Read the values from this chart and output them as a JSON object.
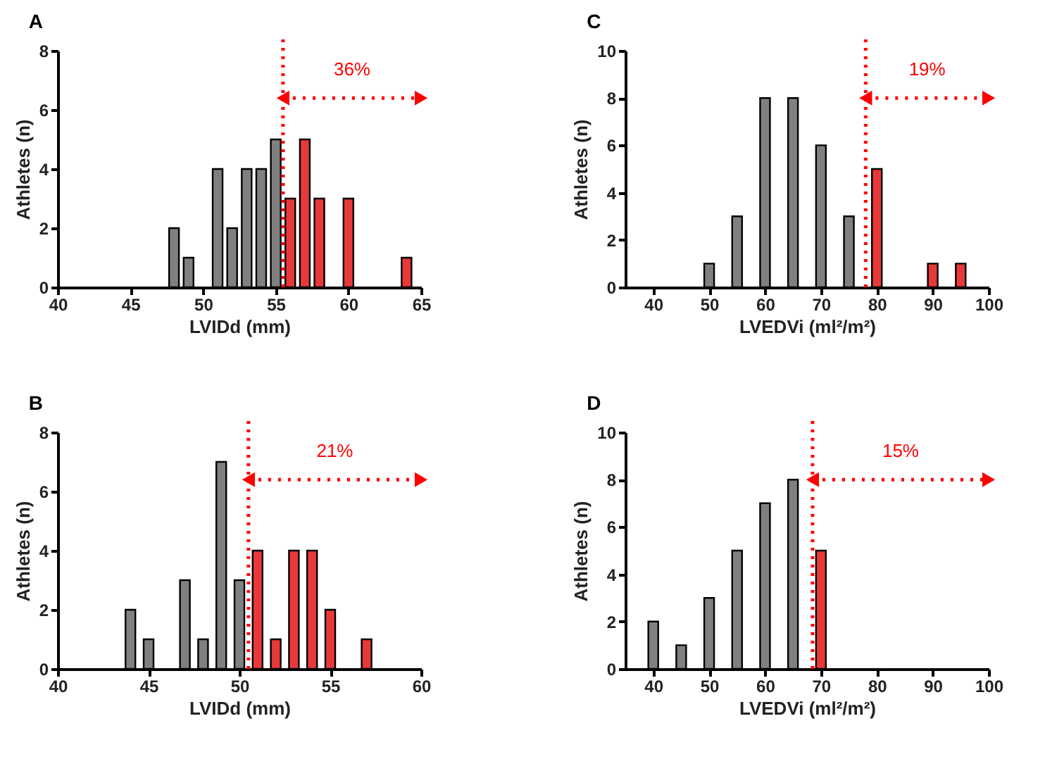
{
  "chart_data": [
    {
      "type": "bar",
      "title": "A",
      "xlabel": "LVIDd (mm)",
      "ylabel": "Athletes (n)",
      "xlim": [
        40,
        65
      ],
      "xticks": [
        40,
        45,
        50,
        55,
        60,
        65
      ],
      "ylim": [
        0,
        8
      ],
      "yticks": [
        0,
        2,
        4,
        6,
        8
      ],
      "grid": false,
      "series": [
        {
          "color": "#808080",
          "x": [
            48,
            49,
            51,
            52,
            53,
            54,
            55
          ],
          "values": [
            2,
            1,
            4,
            2,
            4,
            4,
            5
          ]
        },
        {
          "color": "#e8393a",
          "x": [
            56,
            57,
            58,
            60,
            64
          ],
          "values": [
            3,
            5,
            3,
            3,
            1
          ]
        }
      ],
      "ref_lines": [
        {
          "axis": "x",
          "value": 55.5,
          "color": "#ff0000",
          "line_style": "dotted"
        }
      ],
      "annotations": [
        "36%"
      ]
    },
    {
      "type": "bar",
      "title": "C",
      "xlabel": "LVEDVi (ml²/m²)",
      "ylabel": "Athletes (n)",
      "xlim": [
        35,
        100
      ],
      "xticks": [
        40,
        50,
        60,
        70,
        80,
        90,
        100
      ],
      "ylim": [
        0,
        10
      ],
      "yticks": [
        0,
        2,
        4,
        6,
        8,
        10
      ],
      "grid": false,
      "series": [
        {
          "color": "#808080",
          "x": [
            50,
            55,
            60,
            65,
            70,
            75
          ],
          "values": [
            1,
            3,
            8,
            8,
            6,
            3
          ]
        },
        {
          "color": "#e8393a",
          "x": [
            80,
            90,
            95
          ],
          "values": [
            5,
            1,
            1
          ]
        }
      ],
      "ref_lines": [
        {
          "axis": "x",
          "value": 78,
          "color": "#ff0000",
          "line_style": "dotted"
        }
      ],
      "annotations": [
        "19%"
      ]
    },
    {
      "type": "bar",
      "title": "B",
      "xlabel": "LVIDd (mm)",
      "ylabel": "Athletes (n)",
      "xlim": [
        40,
        60
      ],
      "xticks": [
        40,
        45,
        50,
        55,
        60
      ],
      "ylim": [
        0,
        8
      ],
      "yticks": [
        0,
        2,
        4,
        6,
        8
      ],
      "grid": false,
      "series": [
        {
          "color": "#808080",
          "x": [
            44,
            45,
            47,
            48,
            49,
            50
          ],
          "values": [
            2,
            1,
            3,
            1,
            7,
            3
          ]
        },
        {
          "color": "#e8393a",
          "x": [
            51,
            52,
            53,
            54,
            55,
            57
          ],
          "values": [
            4,
            1,
            4,
            4,
            2,
            1
          ]
        }
      ],
      "ref_lines": [
        {
          "axis": "x",
          "value": 50.5,
          "color": "#ff0000",
          "line_style": "dotted"
        }
      ],
      "annotations": [
        "21%"
      ]
    },
    {
      "type": "bar",
      "title": "D",
      "xlabel": "LVEDVi (ml²/m²)",
      "ylabel": "Athletes (n)",
      "xlim": [
        35,
        100
      ],
      "xticks": [
        40,
        50,
        60,
        70,
        80,
        90,
        100
      ],
      "ylim": [
        0,
        10
      ],
      "yticks": [
        0,
        2,
        4,
        6,
        8,
        10
      ],
      "grid": false,
      "series": [
        {
          "color": "#808080",
          "x": [
            40,
            45,
            50,
            55,
            60,
            65
          ],
          "values": [
            2,
            1,
            3,
            5,
            7,
            8
          ]
        },
        {
          "color": "#e8393a",
          "x": [
            70
          ],
          "values": [
            5
          ]
        }
      ],
      "ref_lines": [
        {
          "axis": "x",
          "value": 68.5,
          "color": "#ff0000",
          "line_style": "dotted"
        }
      ],
      "annotations": [
        "15%"
      ]
    }
  ]
}
